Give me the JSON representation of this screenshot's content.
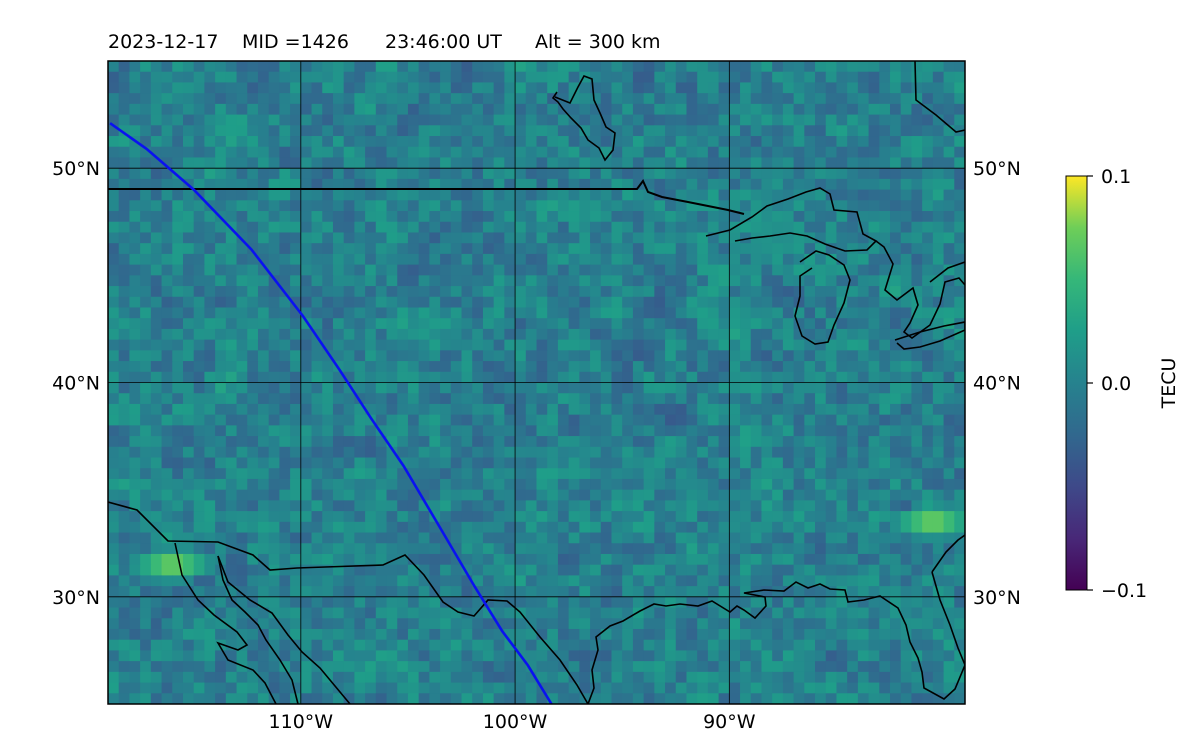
{
  "header": {
    "date": "2023-12-17",
    "mid_label": "MID =1426",
    "time_label": "23:46:00  UT",
    "alt_label": "Alt = 300 km"
  },
  "map": {
    "projection": "equirectangular",
    "lon_range": [
      -119,
      -79
    ],
    "lat_range": [
      25,
      55
    ],
    "gridlines": true,
    "lon_ticks": [
      {
        "value": -110,
        "label": "110°W"
      },
      {
        "value": -100,
        "label": "100°W"
      },
      {
        "value": -90,
        "label": "90°W"
      }
    ],
    "lat_ticks": [
      {
        "value": 50,
        "label": "50°N"
      },
      {
        "value": 40,
        "label": "40°N"
      },
      {
        "value": 30,
        "label": "30°N"
      }
    ],
    "coastline_color": "#000000",
    "track_color": "#0a12f0",
    "satellite_track": [
      [
        -118.9,
        52.1
      ],
      [
        -117.2,
        50.9
      ],
      [
        -115.0,
        49.0
      ],
      [
        -112.3,
        46.2
      ],
      [
        -109.9,
        43.1
      ],
      [
        -108.2,
        40.6
      ],
      [
        -106.7,
        38.3
      ],
      [
        -105.2,
        36.1
      ],
      [
        -103.6,
        33.4
      ],
      [
        -101.9,
        30.5
      ],
      [
        -100.6,
        28.4
      ],
      [
        -99.4,
        26.8
      ],
      [
        -98.3,
        25.0
      ]
    ]
  },
  "chart_data": {
    "type": "heatmap",
    "quantity": "TECU",
    "value_range": [
      -0.1,
      0.1
    ],
    "colormap": "viridis",
    "grid_resolution_deg": [
      0.5,
      0.5
    ],
    "notable_regions": [
      {
        "name": "yellow hotspot",
        "lon": -116,
        "lat": 31.5,
        "value": 0.1
      },
      {
        "name": "yellow hotspot",
        "lon": -80.5,
        "lat": 33.5,
        "value": 0.1
      }
    ]
  },
  "colorbar": {
    "label": "TECU",
    "ticks": [
      {
        "value": 0.1,
        "label": "0.1"
      },
      {
        "value": 0.0,
        "label": "0.0"
      },
      {
        "value": -0.1,
        "label": "−0.1"
      }
    ]
  }
}
